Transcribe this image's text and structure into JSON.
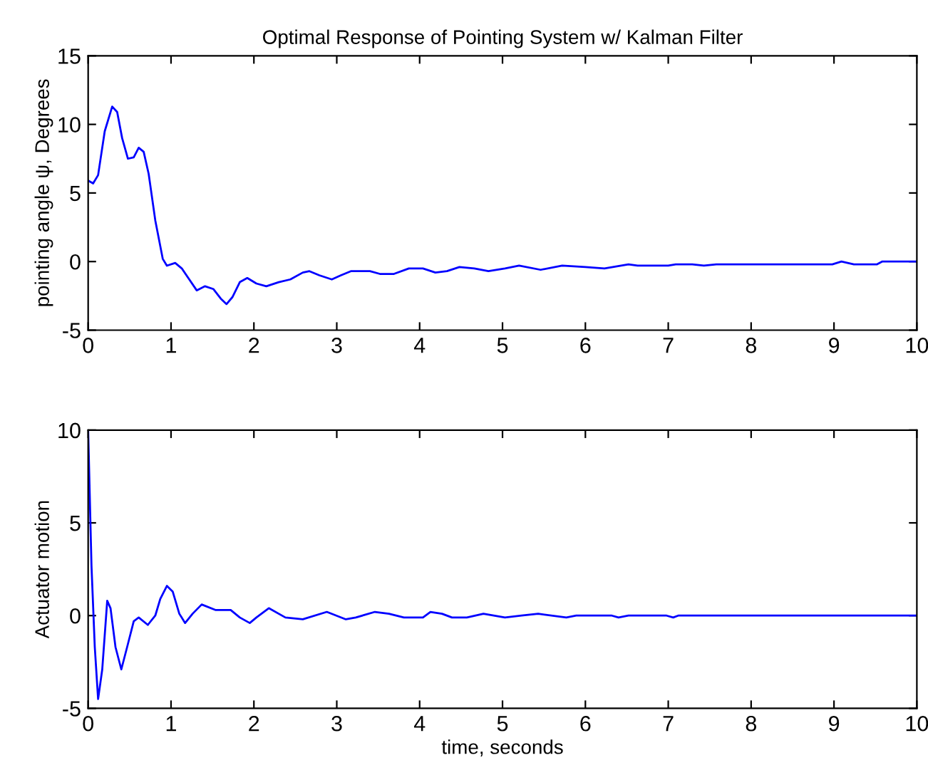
{
  "chart_data": [
    {
      "type": "line",
      "title": "Optimal Response of Pointing System w/ Kalman Filter",
      "ylabel": "pointing angle ψ, Degrees",
      "xlim": [
        0,
        10
      ],
      "ylim": [
        -5,
        15
      ],
      "xticks": [
        0,
        1,
        2,
        3,
        4,
        5,
        6,
        7,
        8,
        9,
        10
      ],
      "yticks": [
        -5,
        0,
        5,
        10,
        15
      ],
      "grid": false,
      "series": [
        {
          "color": "#0000ff",
          "x": [
            0,
            0.06,
            0.12,
            0.2,
            0.29,
            0.35,
            0.41,
            0.48,
            0.55,
            0.61,
            0.67,
            0.73,
            0.81,
            0.9,
            0.95,
            1.05,
            1.13,
            1.22,
            1.31,
            1.41,
            1.51,
            1.6,
            1.67,
            1.74,
            1.83,
            1.92,
            2.03,
            2.15,
            2.3,
            2.44,
            2.59,
            2.67,
            2.79,
            2.94,
            3.05,
            3.17,
            3.4,
            3.52,
            3.69,
            3.87,
            4.04,
            4.19,
            4.33,
            4.48,
            4.66,
            4.83,
            5.03,
            5.2,
            5.46,
            5.72,
            6.0,
            6.23,
            6.52,
            6.63,
            7.0,
            7.09,
            7.29,
            7.43,
            7.58,
            8.98,
            9.09,
            9.24,
            9.52,
            9.58,
            10
          ],
          "values": [
            5.9,
            5.7,
            6.3,
            9.5,
            11.3,
            10.9,
            9.0,
            7.5,
            7.6,
            8.3,
            8.0,
            6.4,
            3.0,
            0.2,
            -0.3,
            -0.1,
            -0.5,
            -1.3,
            -2.1,
            -1.8,
            -2.0,
            -2.7,
            -3.1,
            -2.6,
            -1.5,
            -1.2,
            -1.6,
            -1.8,
            -1.5,
            -1.3,
            -0.8,
            -0.7,
            -1.0,
            -1.3,
            -1.0,
            -0.7,
            -0.7,
            -0.9,
            -0.9,
            -0.5,
            -0.5,
            -0.8,
            -0.7,
            -0.4,
            -0.5,
            -0.7,
            -0.5,
            -0.3,
            -0.6,
            -0.3,
            -0.4,
            -0.5,
            -0.2,
            -0.3,
            -0.3,
            -0.2,
            -0.2,
            -0.3,
            -0.2,
            -0.2,
            0,
            -0.2,
            -0.2,
            0,
            0
          ]
        }
      ]
    },
    {
      "type": "line",
      "xlabel": "time, seconds",
      "ylabel": "Actuator motion",
      "xlim": [
        0,
        10
      ],
      "ylim": [
        -5,
        10
      ],
      "xticks": [
        0,
        1,
        2,
        3,
        4,
        5,
        6,
        7,
        8,
        9,
        10
      ],
      "yticks": [
        -5,
        0,
        5,
        10
      ],
      "grid": false,
      "series": [
        {
          "color": "#0000ff",
          "x": [
            0,
            0.04,
            0.08,
            0.12,
            0.17,
            0.23,
            0.27,
            0.33,
            0.4,
            0.47,
            0.55,
            0.61,
            0.72,
            0.81,
            0.87,
            0.95,
            1.02,
            1.1,
            1.17,
            1.26,
            1.37,
            1.54,
            1.72,
            1.83,
            1.95,
            2.03,
            2.18,
            2.38,
            2.59,
            2.88,
            3.11,
            3.23,
            3.46,
            3.63,
            3.81,
            4.04,
            4.13,
            4.27,
            4.39,
            4.57,
            4.77,
            5.03,
            5.23,
            5.43,
            5.77,
            5.89,
            6.32,
            6.4,
            6.52,
            6.98,
            7.06,
            7.12,
            10
          ],
          "values": [
            10,
            2.7,
            -1.7,
            -4.5,
            -2.9,
            0.8,
            0.4,
            -1.7,
            -2.9,
            -1.7,
            -0.3,
            -0.1,
            -0.5,
            0,
            0.9,
            1.6,
            1.3,
            0.1,
            -0.4,
            0.1,
            0.6,
            0.3,
            0.3,
            -0.1,
            -0.4,
            -0.1,
            0.4,
            -0.1,
            -0.2,
            0.2,
            -0.2,
            -0.1,
            0.2,
            0.1,
            -0.1,
            -0.1,
            0.2,
            0.1,
            -0.1,
            -0.1,
            0.1,
            -0.1,
            0,
            0.1,
            -0.1,
            0,
            0,
            -0.1,
            0,
            0,
            -0.1,
            0,
            0
          ]
        }
      ]
    }
  ]
}
